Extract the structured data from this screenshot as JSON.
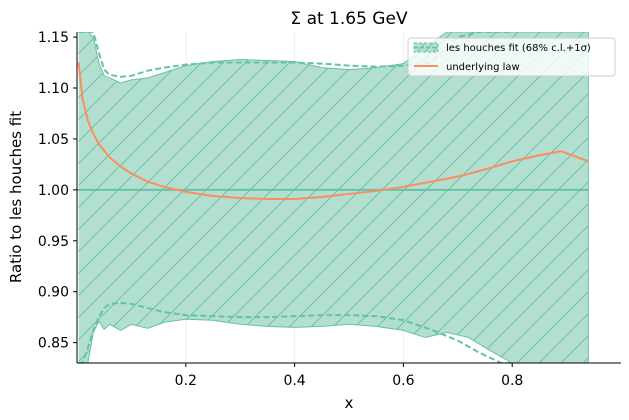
{
  "chart_data": {
    "type": "line",
    "title": "Σ at 1.65 GeV",
    "xlabel": "x",
    "ylabel": "Ratio to les houches fit",
    "xlim": [
      0.0,
      1.0
    ],
    "ylim": [
      0.83,
      1.155
    ],
    "xticks": [
      0.2,
      0.4,
      0.6,
      0.8
    ],
    "xtick_labels": [
      "0.2",
      "0.4",
      "0.6",
      "0.8"
    ],
    "yticks": [
      0.85,
      0.9,
      0.95,
      1.0,
      1.05,
      1.1,
      1.15
    ],
    "ytick_labels": [
      "0.85",
      "0.90",
      "0.95",
      "1.00",
      "1.05",
      "1.10",
      "1.15"
    ],
    "colors": {
      "band": "#66c2a5",
      "underlying": "#fc8d62"
    },
    "legend": {
      "position": "top-right",
      "entries": [
        "les houches fit (68% c.l.+1σ)",
        "underlying law"
      ]
    },
    "series": [
      {
        "name": "les houches fit (68% c.l.+1σ)",
        "kind": "band",
        "x": [
          0.003,
          0.01,
          0.02,
          0.03,
          0.04,
          0.05,
          0.06,
          0.08,
          0.1,
          0.13,
          0.16,
          0.2,
          0.25,
          0.3,
          0.35,
          0.4,
          0.45,
          0.5,
          0.55,
          0.6,
          0.64,
          0.68,
          0.72,
          0.76,
          0.8,
          0.84,
          0.88,
          0.92,
          0.94
        ],
        "upper": [
          1.155,
          1.155,
          1.155,
          1.15,
          1.125,
          1.112,
          1.11,
          1.105,
          1.108,
          1.11,
          1.115,
          1.122,
          1.126,
          1.128,
          1.127,
          1.126,
          1.12,
          1.118,
          1.12,
          1.124,
          1.14,
          1.155,
          1.155,
          1.155,
          1.155,
          1.155,
          1.155,
          1.155,
          1.155
        ],
        "lower": [
          0.83,
          0.83,
          0.83,
          0.86,
          0.871,
          0.863,
          0.868,
          0.862,
          0.868,
          0.864,
          0.87,
          0.873,
          0.872,
          0.868,
          0.866,
          0.865,
          0.866,
          0.868,
          0.866,
          0.862,
          0.855,
          0.86,
          0.855,
          0.842,
          0.83,
          0.83,
          0.83,
          0.83,
          0.83
        ]
      },
      {
        "name": "68% c.l.",
        "kind": "dashed-bounds",
        "x": [
          0.003,
          0.01,
          0.02,
          0.03,
          0.04,
          0.05,
          0.06,
          0.08,
          0.1,
          0.13,
          0.16,
          0.2,
          0.25,
          0.3,
          0.35,
          0.4,
          0.45,
          0.5,
          0.55,
          0.6,
          0.65,
          0.7,
          0.74,
          0.78,
          0.8
        ],
        "upper": [
          1.155,
          1.155,
          1.155,
          1.155,
          1.135,
          1.118,
          1.113,
          1.111,
          1.112,
          1.117,
          1.12,
          1.123,
          1.125,
          1.125,
          1.125,
          1.125,
          1.124,
          1.122,
          1.121,
          1.122,
          1.125,
          1.15,
          1.155,
          1.155,
          1.155
        ],
        "lower": [
          0.83,
          0.83,
          0.845,
          0.862,
          0.875,
          0.884,
          0.888,
          0.889,
          0.888,
          0.884,
          0.88,
          0.877,
          0.876,
          0.875,
          0.875,
          0.876,
          0.877,
          0.877,
          0.876,
          0.872,
          0.863,
          0.852,
          0.84,
          0.83,
          0.83
        ]
      },
      {
        "name": "les houches fit",
        "kind": "reference",
        "x": [
          0.0,
          0.94
        ],
        "y": [
          1.0,
          1.0
        ]
      },
      {
        "name": "underlying law",
        "kind": "line",
        "x": [
          0.003,
          0.01,
          0.02,
          0.03,
          0.04,
          0.06,
          0.08,
          0.1,
          0.13,
          0.16,
          0.2,
          0.25,
          0.3,
          0.35,
          0.4,
          0.45,
          0.5,
          0.55,
          0.6,
          0.65,
          0.7,
          0.75,
          0.8,
          0.85,
          0.89,
          0.92,
          0.94
        ],
        "y": [
          1.125,
          1.09,
          1.068,
          1.055,
          1.045,
          1.032,
          1.023,
          1.016,
          1.008,
          1.003,
          0.998,
          0.994,
          0.992,
          0.991,
          0.991,
          0.993,
          0.996,
          0.999,
          1.003,
          1.008,
          1.013,
          1.02,
          1.028,
          1.034,
          1.038,
          1.032,
          1.028
        ]
      }
    ]
  }
}
